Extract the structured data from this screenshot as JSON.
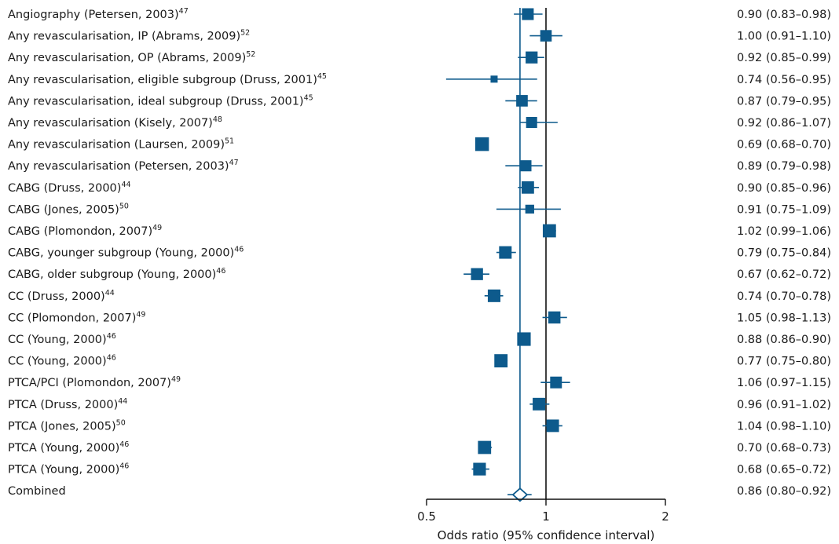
{
  "chart_data": {
    "type": "forest",
    "xlabel": "Odds ratio (95% confidence interval)",
    "scale": "log",
    "xlim": [
      0.5,
      2
    ],
    "xticks": [
      "0.5",
      "1",
      "2"
    ],
    "reference_line": 1,
    "pooled_line": 0.86,
    "colors": {
      "marker": "#0d5a8c",
      "reference_line": "#111111"
    },
    "studies": [
      {
        "label": "Angiography (Petersen, 2003)",
        "ref": "47",
        "or": 0.9,
        "lo": 0.83,
        "hi": 0.98,
        "text": "0.90 (0.83–0.98)",
        "marker": "square"
      },
      {
        "label": "Any revascularisation, IP (Abrams, 2009)",
        "ref": "52",
        "or": 1.0,
        "lo": 0.91,
        "hi": 1.1,
        "text": "1.00 (0.91–1.10)",
        "marker": "square"
      },
      {
        "label": "Any revascularisation, OP (Abrams, 2009)",
        "ref": "52",
        "or": 0.92,
        "lo": 0.85,
        "hi": 0.99,
        "text": "0.92 (0.85–0.99)",
        "marker": "square"
      },
      {
        "label": "Any revascularisation, eligible subgroup (Druss, 2001)",
        "ref": "45",
        "or": 0.74,
        "lo": 0.56,
        "hi": 0.95,
        "text": "0.74 (0.56–0.95)",
        "marker": "square"
      },
      {
        "label": "Any revascularisation, ideal subgroup (Druss, 2001)",
        "ref": "45",
        "or": 0.87,
        "lo": 0.79,
        "hi": 0.95,
        "text": "0.87 (0.79–0.95)",
        "marker": "square"
      },
      {
        "label": "Any revascularisation (Kisely, 2007)",
        "ref": "48",
        "or": 0.92,
        "lo": 0.86,
        "hi": 1.07,
        "text": "0.92 (0.86–1.07)",
        "marker": "square"
      },
      {
        "label": "Any revascularisation (Laursen, 2009)",
        "ref": "51",
        "or": 0.69,
        "lo": 0.68,
        "hi": 0.7,
        "text": "0.69 (0.68–0.70)",
        "marker": "square"
      },
      {
        "label": "Any revascularisation (Petersen, 2003)",
        "ref": "47",
        "or": 0.89,
        "lo": 0.79,
        "hi": 0.98,
        "text": "0.89 (0.79–0.98)",
        "marker": "square"
      },
      {
        "label": "CABG (Druss, 2000)",
        "ref": "44",
        "or": 0.9,
        "lo": 0.85,
        "hi": 0.96,
        "text": "0.90 (0.85–0.96)",
        "marker": "square"
      },
      {
        "label": "CABG (Jones, 2005)",
        "ref": "50",
        "or": 0.91,
        "lo": 0.75,
        "hi": 1.09,
        "text": "0.91 (0.75–1.09)",
        "marker": "square"
      },
      {
        "label": "CABG (Plomondon, 2007)",
        "ref": "49",
        "or": 1.02,
        "lo": 0.99,
        "hi": 1.06,
        "text": "1.02 (0.99–1.06)",
        "marker": "square"
      },
      {
        "label": "CABG, younger subgroup (Young, 2000)",
        "ref": "46",
        "or": 0.79,
        "lo": 0.75,
        "hi": 0.84,
        "text": "0.79 (0.75–0.84)",
        "marker": "square"
      },
      {
        "label": "CABG, older subgroup (Young, 2000)",
        "ref": "46",
        "or": 0.67,
        "lo": 0.62,
        "hi": 0.72,
        "text": "0.67 (0.62–0.72)",
        "marker": "square"
      },
      {
        "label": "CC (Druss, 2000)",
        "ref": "44",
        "or": 0.74,
        "lo": 0.7,
        "hi": 0.78,
        "text": "0.74 (0.70–0.78)",
        "marker": "square"
      },
      {
        "label": "CC (Plomondon, 2007)",
        "ref": "49",
        "or": 1.05,
        "lo": 0.98,
        "hi": 1.13,
        "text": "1.05 (0.98–1.13)",
        "marker": "square"
      },
      {
        "label": "CC (Young, 2000)",
        "ref": "46",
        "or": 0.88,
        "lo": 0.86,
        "hi": 0.9,
        "text": "0.88 (0.86–0.90)",
        "marker": "square"
      },
      {
        "label": "CC (Young, 2000)",
        "ref": "46",
        "or": 0.77,
        "lo": 0.75,
        "hi": 0.8,
        "text": "0.77 (0.75–0.80)",
        "marker": "square"
      },
      {
        "label": "PTCA/PCI (Plomondon, 2007)",
        "ref": "49",
        "or": 1.06,
        "lo": 0.97,
        "hi": 1.15,
        "text": "1.06 (0.97–1.15)",
        "marker": "square"
      },
      {
        "label": "PTCA (Druss, 2000)",
        "ref": "44",
        "or": 0.96,
        "lo": 0.91,
        "hi": 1.02,
        "text": "0.96 (0.91–1.02)",
        "marker": "square"
      },
      {
        "label": "PTCA (Jones, 2005)",
        "ref": "50",
        "or": 1.04,
        "lo": 0.98,
        "hi": 1.1,
        "text": "1.04 (0.98–1.10)",
        "marker": "square"
      },
      {
        "label": "PTCA (Young, 2000)",
        "ref": "46",
        "or": 0.7,
        "lo": 0.68,
        "hi": 0.73,
        "text": "0.70 (0.68–0.73)",
        "marker": "square"
      },
      {
        "label": "PTCA (Young, 2000)",
        "ref": "46",
        "or": 0.68,
        "lo": 0.65,
        "hi": 0.72,
        "text": "0.68 (0.65–0.72)",
        "marker": "square"
      },
      {
        "label": "Combined",
        "ref": "",
        "or": 0.86,
        "lo": 0.8,
        "hi": 0.92,
        "text": "0.86 (0.80–0.92)",
        "marker": "diamond"
      }
    ]
  }
}
